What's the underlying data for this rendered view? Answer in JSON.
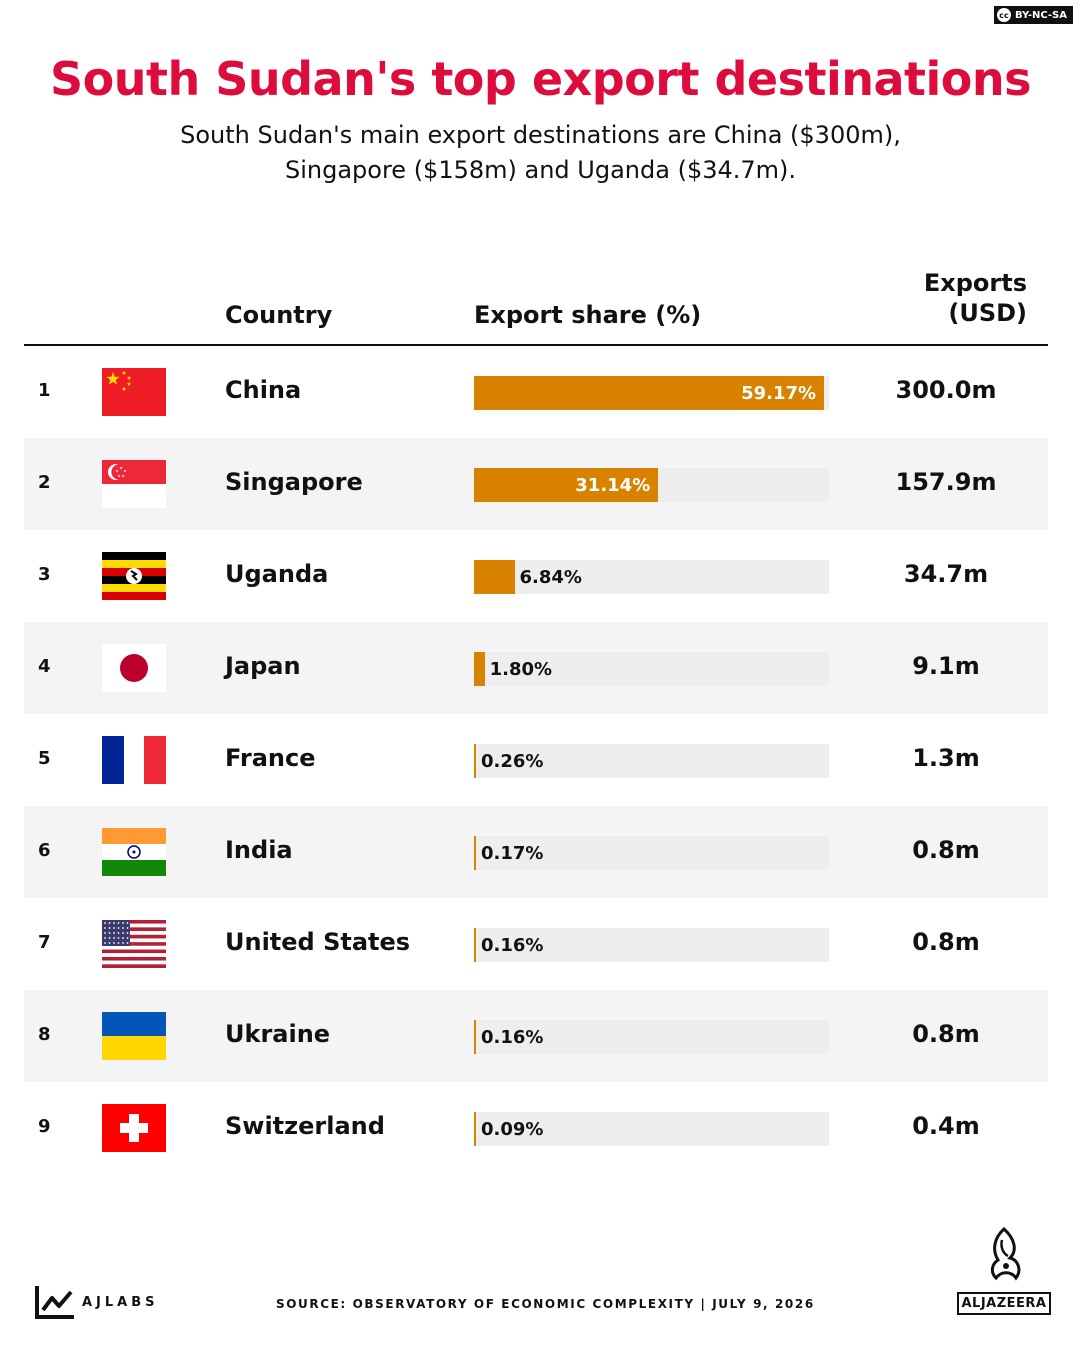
{
  "license": "BY-NC-SA",
  "license_badge": "cc",
  "title": "South Sudan's top export destinations",
  "subtitle_line1": "South Sudan's main export destinations are China ($300m),",
  "subtitle_line2": "Singapore ($158m) and Uganda ($34.7m).",
  "columns": {
    "country": "Country",
    "share": "Export share (%)",
    "usd_line1": "Exports",
    "usd_line2": "(USD)"
  },
  "colors": {
    "title": "#dc0c3c",
    "bar": "#d98200",
    "track": "#eeeeee",
    "row_shade": "#f4f4f4"
  },
  "chart_data": {
    "type": "bar",
    "title": "South Sudan's top export destinations",
    "xlim": [
      0,
      60
    ],
    "rows": [
      {
        "rank": "1",
        "country": "China",
        "share": 59.17,
        "share_label": "59.17%",
        "usd": "300.0m",
        "flag": "china-flag-icon"
      },
      {
        "rank": "2",
        "country": "Singapore",
        "share": 31.14,
        "share_label": "31.14%",
        "usd": "157.9m",
        "flag": "singapore-flag-icon"
      },
      {
        "rank": "3",
        "country": "Uganda",
        "share": 6.84,
        "share_label": "6.84%",
        "usd": "34.7m",
        "flag": "uganda-flag-icon"
      },
      {
        "rank": "4",
        "country": "Japan",
        "share": 1.8,
        "share_label": "1.80%",
        "usd": "9.1m",
        "flag": "japan-flag-icon"
      },
      {
        "rank": "5",
        "country": "France",
        "share": 0.26,
        "share_label": "0.26%",
        "usd": "1.3m",
        "flag": "france-flag-icon"
      },
      {
        "rank": "6",
        "country": "India",
        "share": 0.17,
        "share_label": "0.17%",
        "usd": "0.8m",
        "flag": "india-flag-icon"
      },
      {
        "rank": "7",
        "country": "United States",
        "share": 0.16,
        "share_label": "0.16%",
        "usd": "0.8m",
        "flag": "usa-flag-icon"
      },
      {
        "rank": "8",
        "country": "Ukraine",
        "share": 0.16,
        "share_label": "0.16%",
        "usd": "0.8m",
        "flag": "ukraine-flag-icon"
      },
      {
        "rank": "9",
        "country": "Switzerland",
        "share": 0.09,
        "share_label": "0.09%",
        "usd": "0.4m",
        "flag": "switzerland-flag-icon"
      }
    ]
  },
  "footer": {
    "brand": "AJLABS",
    "source": "SOURCE:  OBSERVATORY OF ECONOMIC COMPLEXITY  |  JULY 9, 2026",
    "publisher": "ALJAZEERA"
  }
}
